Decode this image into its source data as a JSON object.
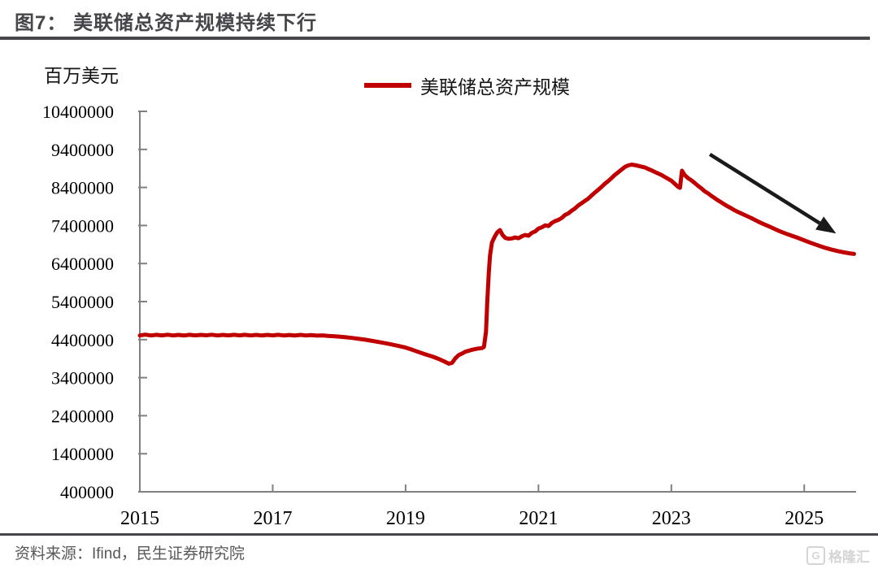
{
  "figure": {
    "title": "图7： 美联储总资产规模持续下行",
    "unit_label": "百万美元",
    "source": "资料来源：Ifind，民生证券研究院",
    "watermark_g": "G",
    "watermark_text": "格隆汇"
  },
  "legend": {
    "label": "美联储总资产规模",
    "color": "#c00000"
  },
  "colors": {
    "series": "#c00000",
    "axis": "#808080",
    "arrow": "#1a1a1a",
    "title": "#45454a",
    "source_text": "#58585a"
  },
  "chart_data": {
    "type": "line",
    "title": "美联储总资产规模持续下行",
    "xlabel": "",
    "ylabel": "百万美元",
    "grid": false,
    "legend_position": "top-center",
    "xlim": [
      2015,
      2025.78
    ],
    "ylim": [
      400000,
      10400000
    ],
    "x_ticks": [
      2015,
      2017,
      2019,
      2021,
      2023,
      2025
    ],
    "y_ticks": [
      400000,
      1400000,
      2400000,
      3400000,
      4400000,
      5400000,
      6400000,
      7400000,
      8400000,
      9400000,
      10400000
    ],
    "annotation_arrow": {
      "from": [
        2023.58,
        9270000
      ],
      "to": [
        2025.48,
        7190000
      ]
    },
    "series": [
      {
        "name": "美联储总资产规模",
        "color": "#c00000",
        "points": [
          [
            2015.0,
            4510000
          ],
          [
            2015.08,
            4530000
          ],
          [
            2015.17,
            4508000
          ],
          [
            2015.25,
            4526000
          ],
          [
            2015.33,
            4512000
          ],
          [
            2015.42,
            4528000
          ],
          [
            2015.5,
            4510000
          ],
          [
            2015.58,
            4524000
          ],
          [
            2015.67,
            4509000
          ],
          [
            2015.75,
            4527000
          ],
          [
            2015.83,
            4511000
          ],
          [
            2015.92,
            4525000
          ],
          [
            2016.0,
            4513000
          ],
          [
            2016.08,
            4529000
          ],
          [
            2016.17,
            4508000
          ],
          [
            2016.25,
            4524000
          ],
          [
            2016.33,
            4511000
          ],
          [
            2016.42,
            4527000
          ],
          [
            2016.5,
            4512000
          ],
          [
            2016.58,
            4526000
          ],
          [
            2016.67,
            4509000
          ],
          [
            2016.75,
            4523000
          ],
          [
            2016.83,
            4510000
          ],
          [
            2016.92,
            4524000
          ],
          [
            2017.0,
            4512000
          ],
          [
            2017.08,
            4526000
          ],
          [
            2017.17,
            4508000
          ],
          [
            2017.25,
            4522000
          ],
          [
            2017.33,
            4509000
          ],
          [
            2017.42,
            4524000
          ],
          [
            2017.5,
            4510000
          ],
          [
            2017.58,
            4520000
          ],
          [
            2017.67,
            4505000
          ],
          [
            2017.75,
            4512000
          ],
          [
            2017.83,
            4498000
          ],
          [
            2017.92,
            4490000
          ],
          [
            2018.0,
            4478000
          ],
          [
            2018.1,
            4462000
          ],
          [
            2018.2,
            4443000
          ],
          [
            2018.3,
            4420000
          ],
          [
            2018.4,
            4395000
          ],
          [
            2018.5,
            4365000
          ],
          [
            2018.6,
            4335000
          ],
          [
            2018.7,
            4303000
          ],
          [
            2018.8,
            4270000
          ],
          [
            2018.9,
            4232000
          ],
          [
            2019.0,
            4190000
          ],
          [
            2019.1,
            4132000
          ],
          [
            2019.2,
            4072000
          ],
          [
            2019.3,
            4012000
          ],
          [
            2019.4,
            3958000
          ],
          [
            2019.5,
            3892000
          ],
          [
            2019.6,
            3812000
          ],
          [
            2019.65,
            3768000
          ],
          [
            2019.7,
            3790000
          ],
          [
            2019.75,
            3910000
          ],
          [
            2019.8,
            3995000
          ],
          [
            2019.85,
            4035000
          ],
          [
            2019.9,
            4082000
          ],
          [
            2019.95,
            4108000
          ],
          [
            2020.0,
            4132000
          ],
          [
            2020.05,
            4152000
          ],
          [
            2020.1,
            4168000
          ],
          [
            2020.15,
            4178000
          ],
          [
            2020.18,
            4210000
          ],
          [
            2020.21,
            4600000
          ],
          [
            2020.23,
            5400000
          ],
          [
            2020.25,
            6100000
          ],
          [
            2020.27,
            6600000
          ],
          [
            2020.3,
            6950000
          ],
          [
            2020.34,
            7100000
          ],
          [
            2020.38,
            7220000
          ],
          [
            2020.42,
            7280000
          ],
          [
            2020.46,
            7150000
          ],
          [
            2020.5,
            7075000
          ],
          [
            2020.55,
            7050000
          ],
          [
            2020.6,
            7060000
          ],
          [
            2020.65,
            7085000
          ],
          [
            2020.7,
            7065000
          ],
          [
            2020.75,
            7115000
          ],
          [
            2020.8,
            7150000
          ],
          [
            2020.85,
            7130000
          ],
          [
            2020.9,
            7205000
          ],
          [
            2020.95,
            7245000
          ],
          [
            2021.0,
            7320000
          ],
          [
            2021.05,
            7350000
          ],
          [
            2021.1,
            7405000
          ],
          [
            2021.15,
            7385000
          ],
          [
            2021.2,
            7465000
          ],
          [
            2021.25,
            7515000
          ],
          [
            2021.3,
            7548000
          ],
          [
            2021.35,
            7598000
          ],
          [
            2021.4,
            7675000
          ],
          [
            2021.45,
            7718000
          ],
          [
            2021.5,
            7788000
          ],
          [
            2021.55,
            7848000
          ],
          [
            2021.6,
            7928000
          ],
          [
            2021.65,
            7988000
          ],
          [
            2021.7,
            8048000
          ],
          [
            2021.75,
            8108000
          ],
          [
            2021.8,
            8188000
          ],
          [
            2021.85,
            8268000
          ],
          [
            2021.9,
            8338000
          ],
          [
            2021.95,
            8418000
          ],
          [
            2022.0,
            8498000
          ],
          [
            2022.05,
            8568000
          ],
          [
            2022.1,
            8648000
          ],
          [
            2022.15,
            8728000
          ],
          [
            2022.2,
            8798000
          ],
          [
            2022.25,
            8868000
          ],
          [
            2022.3,
            8938000
          ],
          [
            2022.35,
            8978000
          ],
          [
            2022.4,
            9000000
          ],
          [
            2022.45,
            8988000
          ],
          [
            2022.5,
            8968000
          ],
          [
            2022.55,
            8948000
          ],
          [
            2022.6,
            8928000
          ],
          [
            2022.65,
            8888000
          ],
          [
            2022.7,
            8848000
          ],
          [
            2022.75,
            8808000
          ],
          [
            2022.8,
            8768000
          ],
          [
            2022.85,
            8728000
          ],
          [
            2022.9,
            8678000
          ],
          [
            2022.95,
            8628000
          ],
          [
            2023.0,
            8578000
          ],
          [
            2023.05,
            8498000
          ],
          [
            2023.1,
            8418000
          ],
          [
            2023.13,
            8390000
          ],
          [
            2023.16,
            8840000
          ],
          [
            2023.2,
            8730000
          ],
          [
            2023.25,
            8645000
          ],
          [
            2023.3,
            8590000
          ],
          [
            2023.35,
            8520000
          ],
          [
            2023.4,
            8445000
          ],
          [
            2023.45,
            8378000
          ],
          [
            2023.5,
            8302000
          ],
          [
            2023.55,
            8248000
          ],
          [
            2023.6,
            8182000
          ],
          [
            2023.65,
            8122000
          ],
          [
            2023.7,
            8062000
          ],
          [
            2023.75,
            8008000
          ],
          [
            2023.8,
            7952000
          ],
          [
            2023.85,
            7902000
          ],
          [
            2023.9,
            7852000
          ],
          [
            2023.95,
            7802000
          ],
          [
            2024.0,
            7758000
          ],
          [
            2024.1,
            7678000
          ],
          [
            2024.2,
            7598000
          ],
          [
            2024.3,
            7510000
          ],
          [
            2024.4,
            7428000
          ],
          [
            2024.5,
            7352000
          ],
          [
            2024.6,
            7272000
          ],
          [
            2024.7,
            7202000
          ],
          [
            2024.8,
            7140000
          ],
          [
            2024.9,
            7078000
          ],
          [
            2025.0,
            7008000
          ],
          [
            2025.1,
            6942000
          ],
          [
            2025.2,
            6880000
          ],
          [
            2025.3,
            6822000
          ],
          [
            2025.4,
            6772000
          ],
          [
            2025.5,
            6730000
          ],
          [
            2025.6,
            6692000
          ],
          [
            2025.7,
            6662000
          ],
          [
            2025.75,
            6652000
          ]
        ]
      }
    ]
  }
}
